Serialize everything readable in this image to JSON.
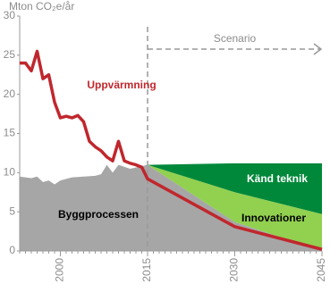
{
  "chart_data": {
    "type": "stacked-area-line",
    "ylabel": "Mton CO₂e/år",
    "annotation": "Scenario",
    "scenario_start": 2015,
    "xlim": [
      1993,
      2045
    ],
    "xticks": [
      2000,
      2015,
      2030,
      2045
    ],
    "ylim": [
      0,
      30
    ],
    "yticks": [
      0,
      5,
      10,
      15,
      20,
      25,
      30
    ],
    "series": [
      {
        "name": "Byggprocessen",
        "kind": "area",
        "color": "#a6a6a6",
        "x": [
          1993,
          1995,
          1996,
          1997,
          1998,
          1999,
          2000,
          2002,
          2004,
          2006,
          2007,
          2008,
          2009,
          2010,
          2012,
          2015,
          2030,
          2045
        ],
        "values": [
          9.5,
          9.3,
          9.5,
          8.8,
          9,
          8.5,
          9,
          9.4,
          9.5,
          9.6,
          9.8,
          11,
          10,
          11,
          10.5,
          11,
          3.7,
          0
        ]
      },
      {
        "name": "Innovationer",
        "kind": "area",
        "color": "#92d050",
        "x": [
          2015,
          2030,
          2045
        ],
        "values": [
          0,
          3.8,
          4.7
        ]
      },
      {
        "name": "Känd teknik",
        "kind": "area",
        "color": "#00883a",
        "x": [
          2015,
          2030,
          2045
        ],
        "values": [
          0,
          3.7,
          6.5
        ]
      },
      {
        "name": "Uppvärmning",
        "kind": "line",
        "color": "#c0272d",
        "x": [
          1993,
          1994,
          1995,
          1996,
          1997,
          1998,
          1999,
          2000,
          2001,
          2002,
          2003,
          2004,
          2005,
          2006,
          2007,
          2008,
          2009,
          2010,
          2011,
          2012,
          2013,
          2014,
          2015,
          2030,
          2045
        ],
        "values": [
          24,
          24,
          23,
          25.5,
          22,
          22.5,
          19,
          17,
          17.2,
          17,
          17.3,
          16.5,
          14,
          13.3,
          12.8,
          12,
          11.5,
          14,
          11.5,
          11.2,
          11,
          10.7,
          9.2,
          3.1,
          0.2
        ]
      }
    ]
  }
}
